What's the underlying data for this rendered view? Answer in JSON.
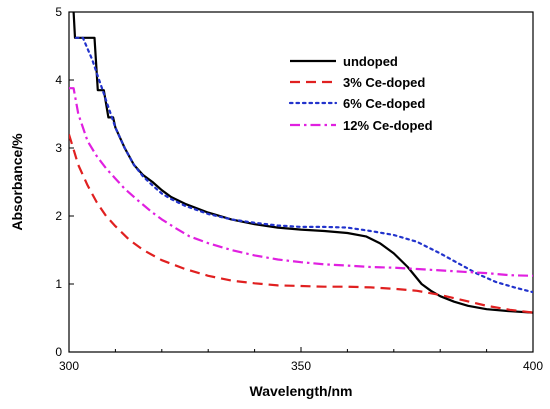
{
  "chart_data": {
    "type": "line",
    "title": "",
    "xlabel": "Wavelength/nm",
    "ylabel": "Absorbance/%",
    "xlim": [
      300,
      400
    ],
    "ylim": [
      0,
      5
    ],
    "xticks": [
      300,
      350,
      400
    ],
    "yticks": [
      0,
      1,
      2,
      3,
      4,
      5
    ],
    "grid": false,
    "legend_position": "top-right",
    "series": [
      {
        "name": "undoped",
        "color": "#000000",
        "dash": "solid",
        "points": [
          [
            301,
            5.0
          ],
          [
            301.3,
            4.62
          ],
          [
            303,
            4.62
          ],
          [
            305.5,
            4.62
          ],
          [
            306.2,
            3.85
          ],
          [
            307.5,
            3.85
          ],
          [
            308.5,
            3.45
          ],
          [
            309.5,
            3.45
          ],
          [
            310,
            3.3
          ],
          [
            312,
            3.0
          ],
          [
            314,
            2.75
          ],
          [
            316,
            2.6
          ],
          [
            318,
            2.5
          ],
          [
            320,
            2.38
          ],
          [
            322,
            2.28
          ],
          [
            325,
            2.18
          ],
          [
            330,
            2.05
          ],
          [
            335,
            1.95
          ],
          [
            340,
            1.88
          ],
          [
            345,
            1.83
          ],
          [
            350,
            1.8
          ],
          [
            355,
            1.78
          ],
          [
            360,
            1.75
          ],
          [
            364,
            1.7
          ],
          [
            367,
            1.6
          ],
          [
            370,
            1.45
          ],
          [
            373,
            1.25
          ],
          [
            376,
            1.0
          ],
          [
            378,
            0.9
          ],
          [
            380,
            0.82
          ],
          [
            383,
            0.74
          ],
          [
            386,
            0.68
          ],
          [
            390,
            0.63
          ],
          [
            395,
            0.6
          ],
          [
            400,
            0.58
          ]
        ]
      },
      {
        "name": "3% Ce-doped",
        "color": "#e02020",
        "dash": "dashed",
        "points": [
          [
            300,
            3.2
          ],
          [
            302,
            2.75
          ],
          [
            304,
            2.45
          ],
          [
            306,
            2.2
          ],
          [
            308,
            2.0
          ],
          [
            310,
            1.85
          ],
          [
            313,
            1.65
          ],
          [
            316,
            1.5
          ],
          [
            320,
            1.35
          ],
          [
            325,
            1.22
          ],
          [
            330,
            1.12
          ],
          [
            335,
            1.05
          ],
          [
            340,
            1.01
          ],
          [
            345,
            0.98
          ],
          [
            350,
            0.97
          ],
          [
            355,
            0.96
          ],
          [
            360,
            0.96
          ],
          [
            365,
            0.95
          ],
          [
            370,
            0.93
          ],
          [
            375,
            0.9
          ],
          [
            380,
            0.84
          ],
          [
            385,
            0.76
          ],
          [
            390,
            0.68
          ],
          [
            395,
            0.62
          ],
          [
            400,
            0.58
          ]
        ]
      },
      {
        "name": "6% Ce-doped",
        "color": "#2233cc",
        "dash": "dotted",
        "points": [
          [
            301.5,
            4.62
          ],
          [
            303,
            4.62
          ],
          [
            305,
            4.3
          ],
          [
            306,
            4.1
          ],
          [
            307,
            3.9
          ],
          [
            308,
            3.7
          ],
          [
            310,
            3.3
          ],
          [
            312,
            3.0
          ],
          [
            314,
            2.75
          ],
          [
            316,
            2.58
          ],
          [
            318,
            2.45
          ],
          [
            320,
            2.33
          ],
          [
            322,
            2.25
          ],
          [
            325,
            2.15
          ],
          [
            330,
            2.03
          ],
          [
            335,
            1.95
          ],
          [
            340,
            1.9
          ],
          [
            345,
            1.86
          ],
          [
            350,
            1.84
          ],
          [
            355,
            1.84
          ],
          [
            360,
            1.83
          ],
          [
            365,
            1.78
          ],
          [
            370,
            1.72
          ],
          [
            375,
            1.62
          ],
          [
            380,
            1.45
          ],
          [
            384,
            1.3
          ],
          [
            388,
            1.15
          ],
          [
            392,
            1.03
          ],
          [
            396,
            0.95
          ],
          [
            400,
            0.88
          ]
        ]
      },
      {
        "name": "12% Ce-doped",
        "color": "#e020e0",
        "dash": "dashdot",
        "points": [
          [
            300,
            3.88
          ],
          [
            301,
            3.88
          ],
          [
            302,
            3.5
          ],
          [
            304,
            3.1
          ],
          [
            306,
            2.88
          ],
          [
            308,
            2.7
          ],
          [
            310,
            2.55
          ],
          [
            312,
            2.4
          ],
          [
            315,
            2.22
          ],
          [
            318,
            2.05
          ],
          [
            320,
            1.95
          ],
          [
            323,
            1.82
          ],
          [
            326,
            1.7
          ],
          [
            330,
            1.6
          ],
          [
            335,
            1.5
          ],
          [
            340,
            1.42
          ],
          [
            345,
            1.36
          ],
          [
            350,
            1.32
          ],
          [
            355,
            1.29
          ],
          [
            360,
            1.27
          ],
          [
            365,
            1.25
          ],
          [
            370,
            1.24
          ],
          [
            375,
            1.22
          ],
          [
            380,
            1.2
          ],
          [
            385,
            1.18
          ],
          [
            390,
            1.16
          ],
          [
            395,
            1.13
          ],
          [
            400,
            1.12
          ]
        ]
      }
    ]
  }
}
